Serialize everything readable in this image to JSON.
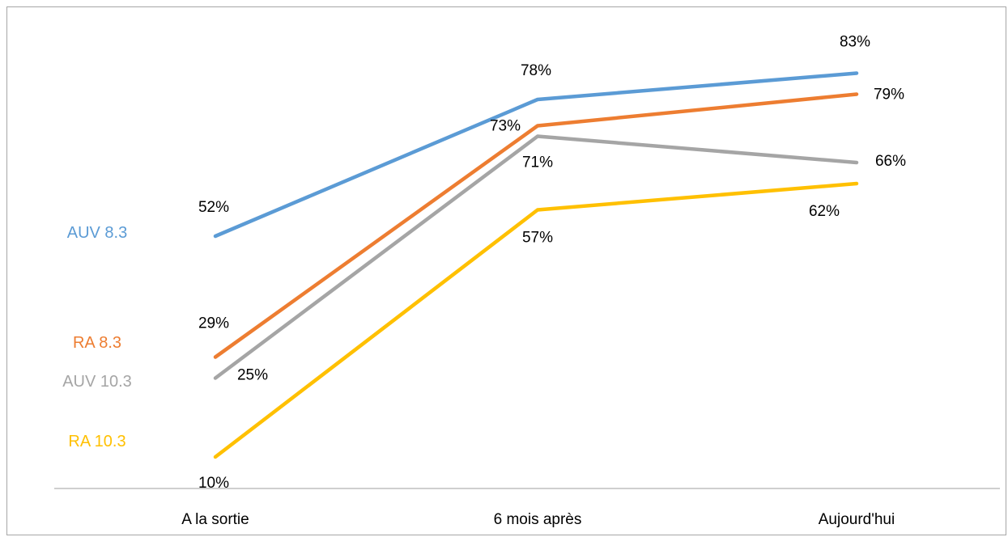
{
  "chart_data": {
    "type": "line",
    "categories": [
      "A la sortie",
      "6 mois après",
      "Aujourd'hui"
    ],
    "ylim": [
      0,
      100
    ],
    "grid": false,
    "legend": "left, inline with series start",
    "series": [
      {
        "name": "AUV 8.3",
        "color": "#5b9bd5",
        "values": [
          52,
          78,
          83
        ],
        "labels": [
          "52%",
          "78%",
          "83%"
        ]
      },
      {
        "name": "RA 8.3",
        "color": "#ed7d31",
        "values": [
          29,
          73,
          79
        ],
        "labels": [
          "29%",
          "73%",
          "79%"
        ]
      },
      {
        "name": "AUV 10.3",
        "color": "#a5a5a5",
        "values": [
          25,
          71,
          66
        ],
        "labels": [
          "25%",
          "71%",
          "66%"
        ]
      },
      {
        "name": "RA 10.3",
        "color": "#ffc000",
        "values": [
          10,
          57,
          62
        ],
        "labels": [
          "10%",
          "57%",
          "62%"
        ]
      }
    ]
  }
}
